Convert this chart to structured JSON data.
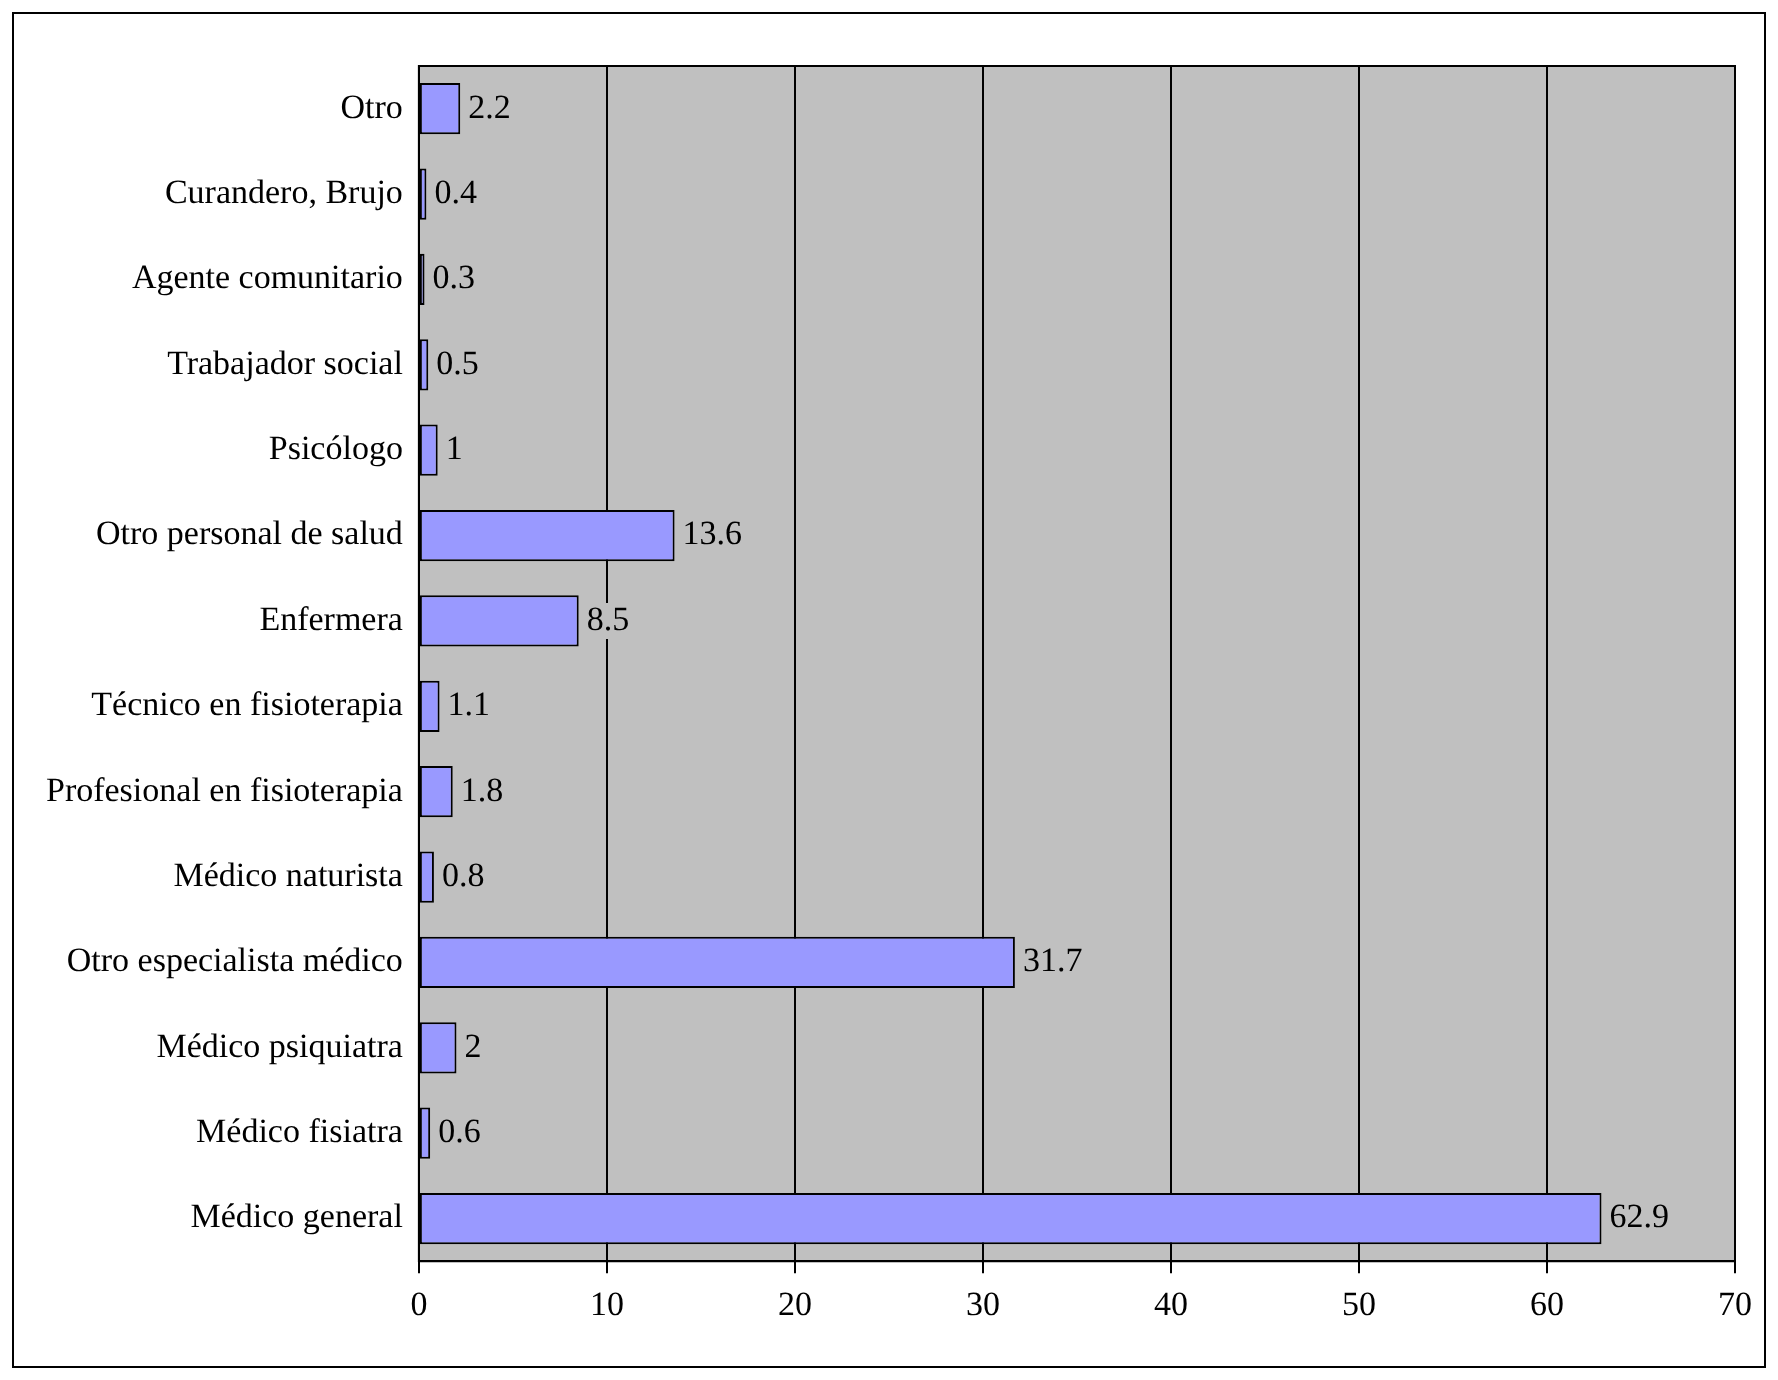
{
  "chart_data": {
    "type": "bar",
    "orientation": "horizontal",
    "categories": [
      "Otro",
      "Curandero, Brujo",
      "Agente comunitario",
      "Trabajador social",
      "Psicólogo",
      "Otro personal de salud",
      "Enfermera",
      "Técnico en fisioterapia",
      "Profesional en fisioterapia",
      "Médico naturista",
      "Otro especialista médico",
      "Médico psiquiatra",
      "Médico fisiatra",
      "Médico general"
    ],
    "values": [
      2.2,
      0.4,
      0.3,
      0.5,
      1,
      13.6,
      8.5,
      1.1,
      1.8,
      0.8,
      31.7,
      2,
      0.6,
      62.9
    ],
    "color": "#9999ff",
    "xlim": [
      0,
      70
    ],
    "xticks": [
      0,
      10,
      20,
      30,
      40,
      50,
      60,
      70
    ],
    "grid": "x",
    "legend": false,
    "data_labels": true
  }
}
